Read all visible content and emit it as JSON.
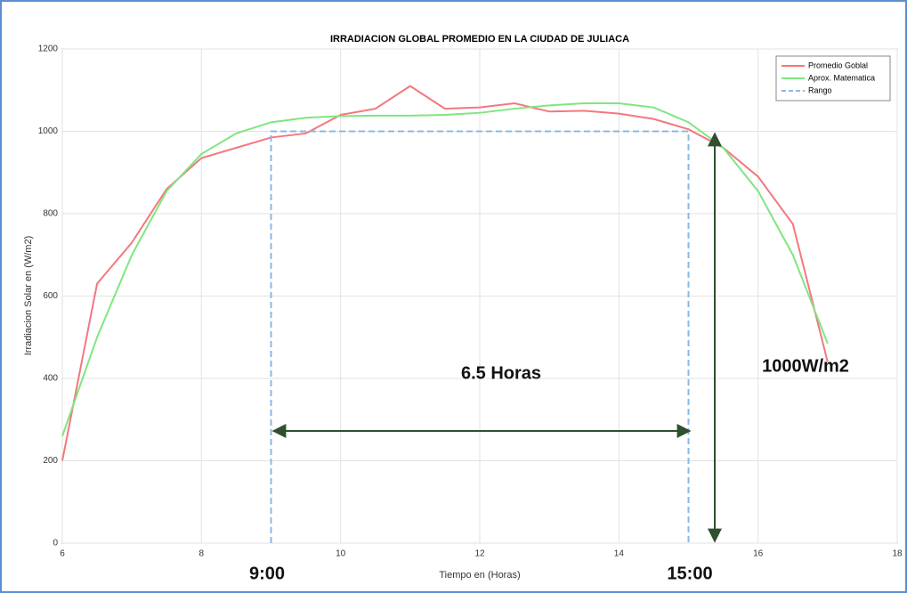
{
  "chart_data": {
    "type": "line",
    "title": "IRRADIACION GLOBAL PROMEDIO EN LA CIUDAD DE JULIACA",
    "x_label": "Tiempo en (Horas)",
    "y_label": "Irradiacion Solar en (W/m2)",
    "xlim": [
      6,
      18
    ],
    "xticks": [
      6,
      8,
      10,
      12,
      14,
      16,
      18
    ],
    "ylim": [
      0,
      1200
    ],
    "yticks": [
      0,
      200,
      400,
      600,
      800,
      1000,
      1200
    ],
    "grid": true,
    "legend": "northeast",
    "series": [
      {
        "name": "Promedio Goblal",
        "color": "#f4777f",
        "dash": false,
        "x": [
          6,
          6.5,
          7,
          7.5,
          8,
          8.5,
          9,
          9.5,
          10,
          10.5,
          11,
          11.5,
          12,
          12.5,
          13,
          13.5,
          14,
          14.5,
          15,
          15.5,
          16,
          16.5,
          17
        ],
        "values": [
          200,
          630,
          730,
          860,
          935,
          960,
          985,
          995,
          1040,
          1055,
          1110,
          1055,
          1058,
          1068,
          1048,
          1050,
          1043,
          1030,
          1005,
          960,
          890,
          775,
          440
        ]
      },
      {
        "name": "Aprox. Matematica",
        "color": "#7fe67f",
        "dash": false,
        "x": [
          6,
          6.5,
          7,
          7.5,
          8,
          8.5,
          9,
          9.5,
          10,
          10.5,
          11,
          11.5,
          12,
          12.5,
          13,
          13.5,
          14,
          14.5,
          15,
          15.5,
          16,
          16.5,
          17
        ],
        "values": [
          260,
          500,
          700,
          855,
          945,
          995,
          1022,
          1033,
          1037,
          1038,
          1038,
          1040,
          1045,
          1055,
          1063,
          1068,
          1068,
          1058,
          1022,
          960,
          855,
          700,
          485
        ]
      },
      {
        "name": "Rango",
        "color": "#8ab8e6",
        "dash": true,
        "x": [
          9,
          9,
          15,
          15
        ],
        "values": [
          0,
          1000,
          1000,
          0
        ]
      }
    ],
    "annotations": [
      "6.5 Horas",
      "1000W/m2",
      "9:00",
      "15:00"
    ]
  }
}
